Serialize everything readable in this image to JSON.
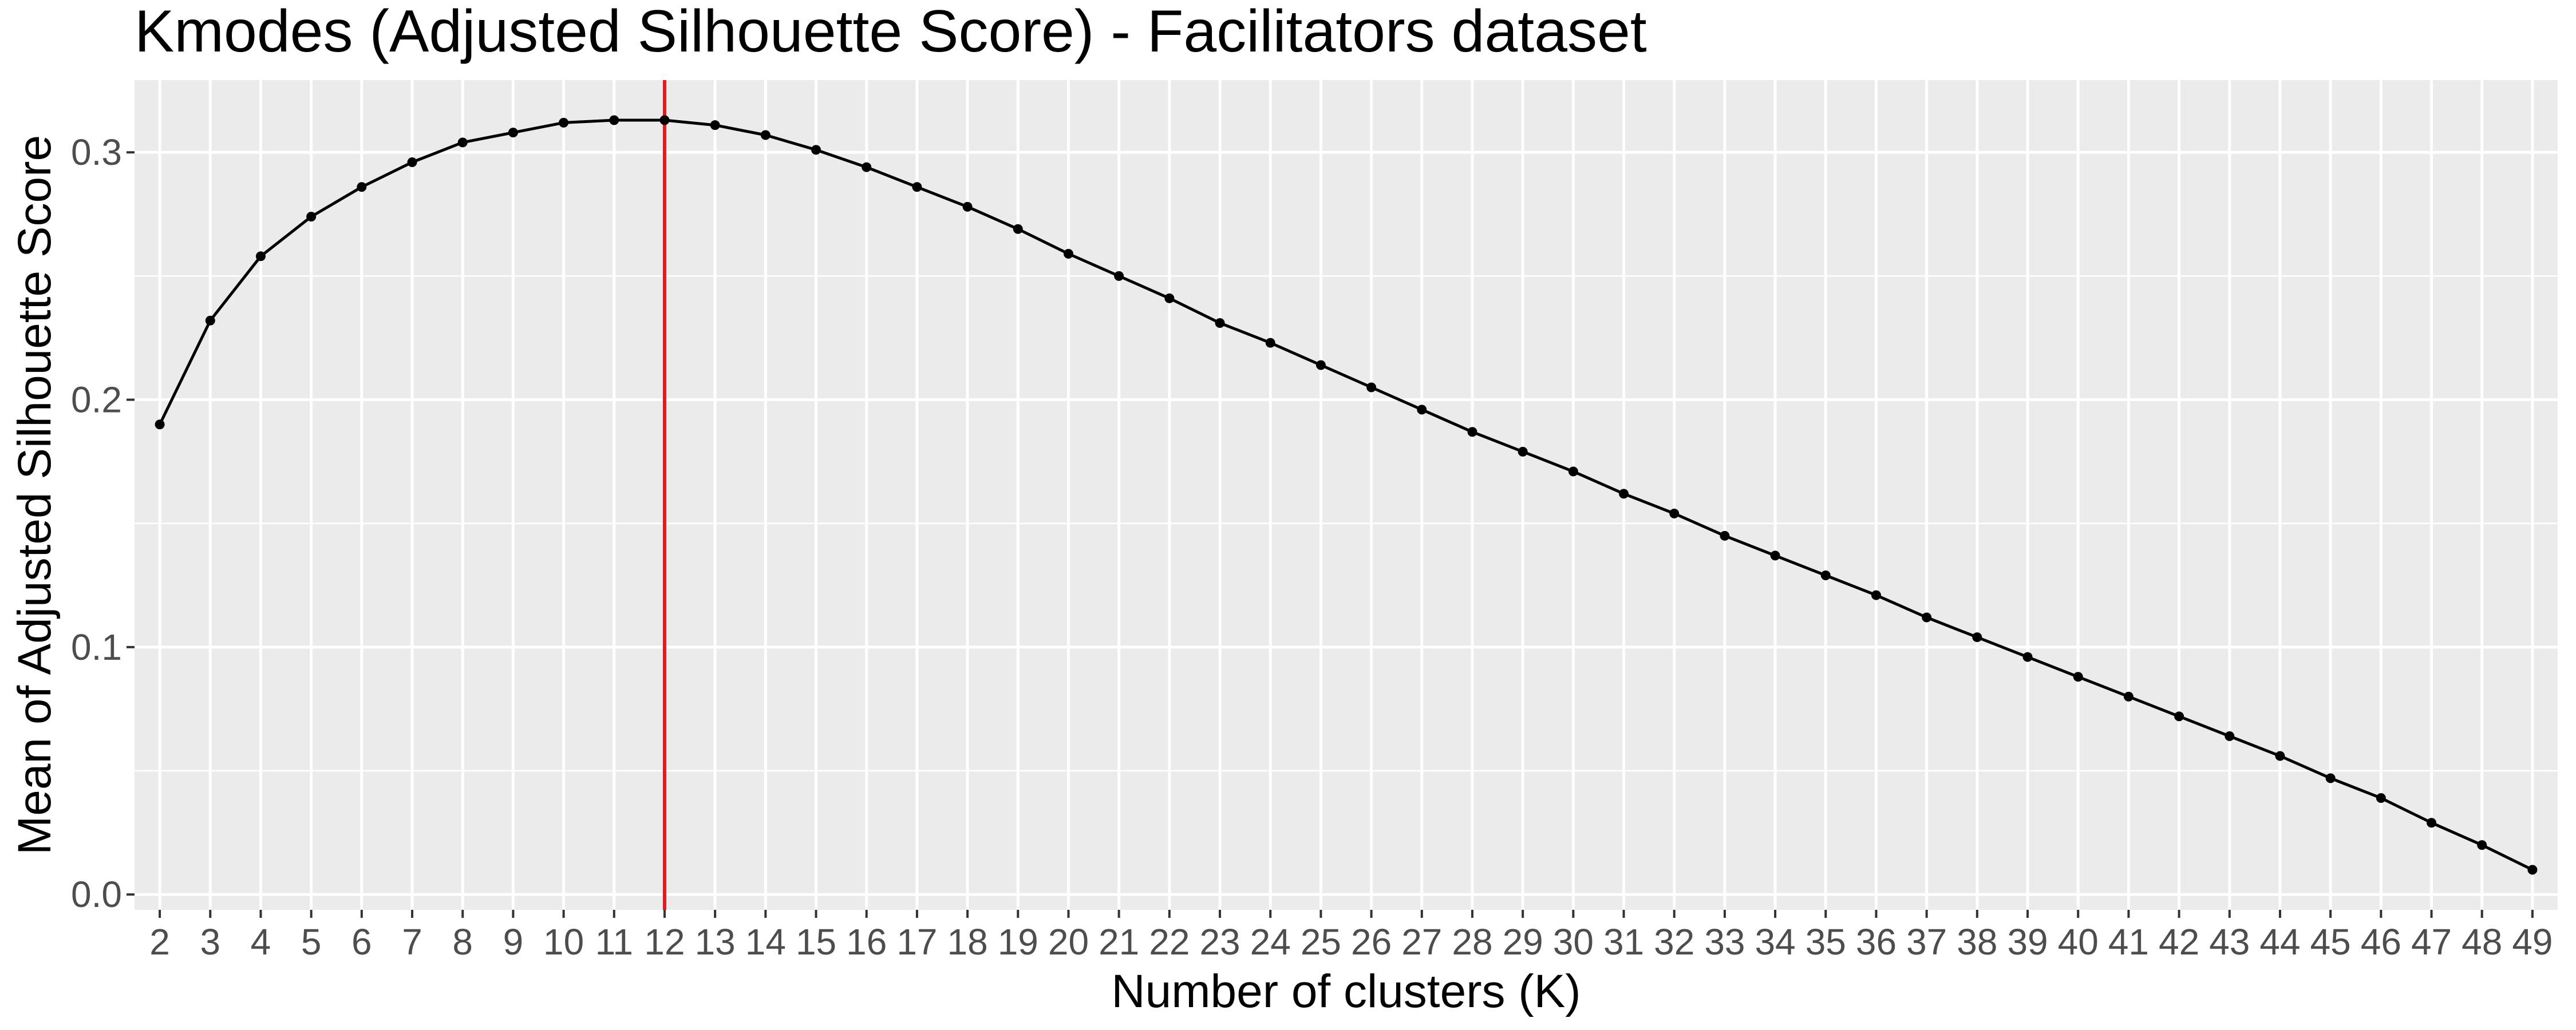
{
  "chart_data": {
    "type": "line",
    "title": "Kmodes (Adjusted Silhouette Score) - Facilitators dataset",
    "xlabel": "Number of clusters (K)",
    "ylabel": "Mean of Adjusted Silhouette Score",
    "x": [
      2,
      3,
      4,
      5,
      6,
      7,
      8,
      9,
      10,
      11,
      12,
      13,
      14,
      15,
      16,
      17,
      18,
      19,
      20,
      21,
      22,
      23,
      24,
      25,
      26,
      27,
      28,
      29,
      30,
      31,
      32,
      33,
      34,
      35,
      36,
      37,
      38,
      39,
      40,
      41,
      42,
      43,
      44,
      45,
      46,
      47,
      48,
      49
    ],
    "y": [
      0.19,
      0.232,
      0.258,
      0.274,
      0.286,
      0.296,
      0.304,
      0.308,
      0.312,
      0.313,
      0.313,
      0.311,
      0.307,
      0.301,
      0.294,
      0.286,
      0.278,
      0.269,
      0.259,
      0.25,
      0.241,
      0.231,
      0.223,
      0.214,
      0.205,
      0.196,
      0.187,
      0.179,
      0.171,
      0.162,
      0.154,
      0.145,
      0.137,
      0.129,
      0.121,
      0.112,
      0.104,
      0.096,
      0.088,
      0.08,
      0.072,
      0.064,
      0.056,
      0.047,
      0.039,
      0.029,
      0.02,
      0.01
    ],
    "xlim": [
      1.5,
      49.5
    ],
    "ylim": [
      -0.0062,
      0.3292
    ],
    "yticks": [
      0.0,
      0.1,
      0.2,
      0.3
    ],
    "ytick_labels": [
      "0.0",
      "0.1",
      "0.2",
      "0.3"
    ],
    "vline": {
      "x": 12,
      "color": "#e41a1c"
    },
    "line_color": "#000000",
    "panel_color": "#ebebeb",
    "grid": true,
    "legend": "none"
  }
}
